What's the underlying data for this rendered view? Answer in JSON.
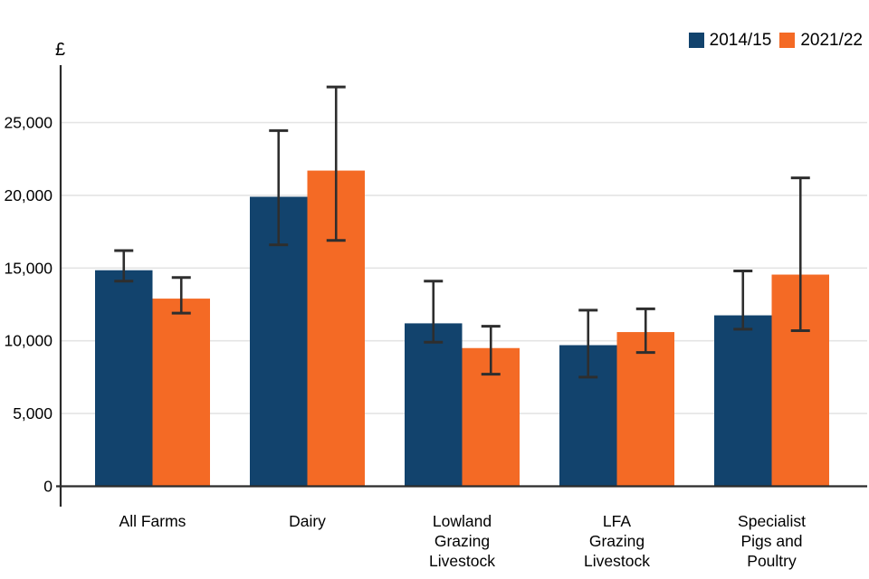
{
  "legend": {
    "items": [
      {
        "label": "2014/15",
        "color": "#12436D"
      },
      {
        "label": "2021/22",
        "color": "#F46A25"
      }
    ]
  },
  "chart_data": {
    "type": "bar",
    "title": "",
    "xlabel": "",
    "ylabel": "£",
    "grid": true,
    "error_bars": true,
    "legend_position": "top-right",
    "ylim": [
      0,
      29000
    ],
    "yticks": [
      0,
      5000,
      10000,
      15000,
      20000,
      25000
    ],
    "ytick_labels": [
      "0",
      "5,000",
      "10,000",
      "15,000",
      "20,000",
      "25,000"
    ],
    "categories": [
      "All Farms",
      "Dairy",
      "Lowland Grazing Livestock",
      "LFA Grazing Livestock",
      "Specialist Pigs and Poultry"
    ],
    "category_lines": [
      [
        "All Farms"
      ],
      [
        "Dairy"
      ],
      [
        "Lowland",
        "Grazing",
        "Livestock"
      ],
      [
        "LFA",
        "Grazing",
        "Livestock"
      ],
      [
        "Specialist",
        "Pigs and",
        "Poultry"
      ]
    ],
    "series": [
      {
        "name": "2014/15",
        "color": "#12436D",
        "values": [
          14850,
          19900,
          11200,
          9700,
          11750
        ],
        "error_low": [
          14100,
          16600,
          9900,
          7500,
          10800
        ],
        "error_high": [
          16200,
          24450,
          14100,
          12100,
          14800
        ]
      },
      {
        "name": "2021/22",
        "color": "#F46A25",
        "values": [
          12900,
          21700,
          9500,
          10600,
          14550
        ],
        "error_low": [
          11900,
          16900,
          7700,
          9200,
          10700
        ],
        "error_high": [
          14350,
          27450,
          11000,
          12200,
          21200
        ]
      }
    ],
    "colors": {
      "grid": "#E4E4E4",
      "axis": "#2B2B2B",
      "error_bar": "#2E2E2E",
      "text": "#000000"
    }
  }
}
